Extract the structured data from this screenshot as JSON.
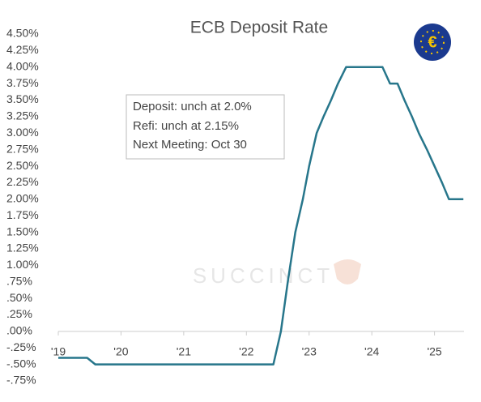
{
  "chart_data": {
    "type": "line",
    "title": "ECB Deposit Rate",
    "annotation": [
      "Deposit: unch at 2.0%",
      "Refi: unch at 2.15%",
      "Next Meeting:  Oct 30"
    ],
    "watermark": "SUCCINCT",
    "x": [
      2019.0,
      2019.46,
      2019.59,
      2022.43,
      2022.55,
      2022.66,
      2022.78,
      2022.9,
      2023.0,
      2023.12,
      2023.23,
      2023.35,
      2023.46,
      2023.59,
      2024.17,
      2024.29,
      2024.41,
      2024.52,
      2024.64,
      2024.75,
      2024.88,
      2025.0,
      2025.12,
      2025.23,
      2025.46
    ],
    "series": [
      {
        "name": "Deposit Rate",
        "color": "#27768b",
        "values": [
          -0.4,
          -0.4,
          -0.5,
          -0.5,
          0,
          0.75,
          1.5,
          2.0,
          2.5,
          3.0,
          3.25,
          3.5,
          3.75,
          4.0,
          4.0,
          3.75,
          3.75,
          3.5,
          3.25,
          3.0,
          2.75,
          2.5,
          2.25,
          2.0,
          2.0
        ]
      }
    ],
    "xlim": [
      2019,
      2025.47
    ],
    "xticks": [
      {
        "value": 2019,
        "label": "'19"
      },
      {
        "value": 2020,
        "label": "'20"
      },
      {
        "value": 2021,
        "label": "'21"
      },
      {
        "value": 2022,
        "label": "'22"
      },
      {
        "value": 2023,
        "label": "'23"
      },
      {
        "value": 2024,
        "label": "'24"
      },
      {
        "value": 2025,
        "label": "'25"
      }
    ],
    "ylim": [
      -0.75,
      4.5
    ],
    "yticks": [
      {
        "value": 4.5,
        "label": "4.50%"
      },
      {
        "value": 4.25,
        "label": "4.25%"
      },
      {
        "value": 4.0,
        "label": "4.00%"
      },
      {
        "value": 3.75,
        "label": "3.75%"
      },
      {
        "value": 3.5,
        "label": "3.50%"
      },
      {
        "value": 3.25,
        "label": "3.25%"
      },
      {
        "value": 3.0,
        "label": "3.00%"
      },
      {
        "value": 2.75,
        "label": "2.75%"
      },
      {
        "value": 2.5,
        "label": "2.50%"
      },
      {
        "value": 2.25,
        "label": "2.25%"
      },
      {
        "value": 2.0,
        "label": "2.00%"
      },
      {
        "value": 1.75,
        "label": "1.75%"
      },
      {
        "value": 1.5,
        "label": "1.50%"
      },
      {
        "value": 1.25,
        "label": "1.25%"
      },
      {
        "value": 1.0,
        "label": "1.00%"
      },
      {
        "value": 0.75,
        "label": ".75%"
      },
      {
        "value": 0.5,
        "label": ".50%"
      },
      {
        "value": 0.25,
        "label": ".25%"
      },
      {
        "value": 0,
        "label": ".00%"
      },
      {
        "value": -0.25,
        "label": "-.25%"
      },
      {
        "value": -0.5,
        "label": "-.50%"
      },
      {
        "value": -0.75,
        "label": "-.75%"
      }
    ],
    "grid": false
  }
}
